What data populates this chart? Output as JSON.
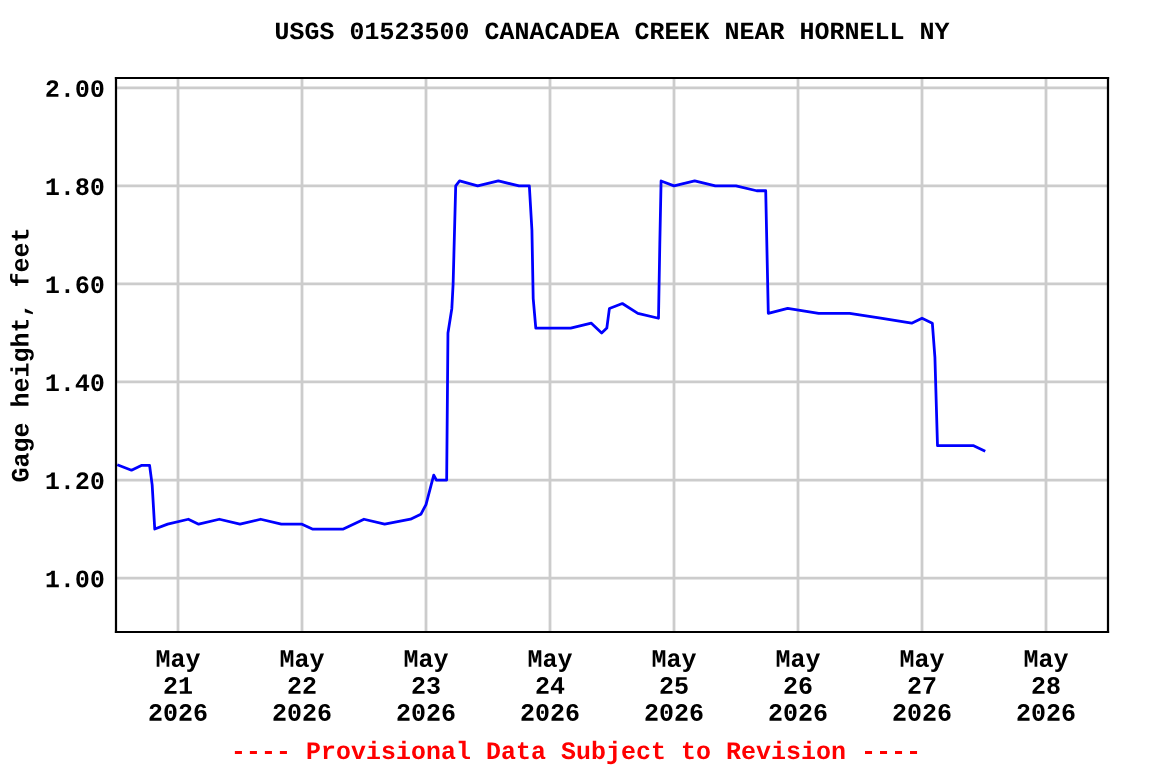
{
  "chart_data": {
    "type": "line",
    "title": "USGS 01523500 CANACADEA CREEK NEAR HORNELL NY",
    "ylabel": "Gage height, feet",
    "annotations": [
      "---- Provisional Data Subject to Revision ----"
    ],
    "x": [
      "2026-05-20T12:30",
      "2026-05-20T15:00",
      "2026-05-20T17:00",
      "2026-05-20T18:30",
      "2026-05-20T19:00",
      "2026-05-20T19:30",
      "2026-05-20T22:00",
      "2026-05-21T02:00",
      "2026-05-21T04:00",
      "2026-05-21T08:00",
      "2026-05-21T12:00",
      "2026-05-21T16:00",
      "2026-05-21T20:00",
      "2026-05-22T00:00",
      "2026-05-22T02:00",
      "2026-05-22T08:00",
      "2026-05-22T12:00",
      "2026-05-22T16:00",
      "2026-05-22T21:00",
      "2026-05-22T23:00",
      "2026-05-23T00:00",
      "2026-05-23T01:00",
      "2026-05-23T01:30",
      "2026-05-23T02:00",
      "2026-05-23T04:00",
      "2026-05-23T04:15",
      "2026-05-23T05:00",
      "2026-05-23T05:15",
      "2026-05-23T05:45",
      "2026-05-23T06:30",
      "2026-05-23T10:00",
      "2026-05-23T14:00",
      "2026-05-23T18:00",
      "2026-05-23T20:00",
      "2026-05-23T20:30",
      "2026-05-23T20:45",
      "2026-05-23T21:15",
      "2026-05-24T00:00",
      "2026-05-24T04:00",
      "2026-05-24T08:00",
      "2026-05-24T10:00",
      "2026-05-24T11:00",
      "2026-05-24T11:30",
      "2026-05-24T14:00",
      "2026-05-24T17:00",
      "2026-05-24T21:00",
      "2026-05-24T21:15",
      "2026-05-24T21:30",
      "2026-05-25T00:00",
      "2026-05-25T04:00",
      "2026-05-25T08:00",
      "2026-05-25T12:00",
      "2026-05-25T16:00",
      "2026-05-25T17:45",
      "2026-05-25T18:15",
      "2026-05-25T22:00",
      "2026-05-26T04:00",
      "2026-05-26T10:00",
      "2026-05-26T16:00",
      "2026-05-26T22:00",
      "2026-05-27T00:00",
      "2026-05-27T02:00",
      "2026-05-27T02:30",
      "2026-05-27T03:00",
      "2026-05-27T06:00",
      "2026-05-27T10:00",
      "2026-05-27T12:00"
    ],
    "series": [
      {
        "color": "#0000ff",
        "values": [
          1.23,
          1.22,
          1.23,
          1.23,
          1.19,
          1.1,
          1.11,
          1.12,
          1.11,
          1.12,
          1.11,
          1.12,
          1.11,
          1.11,
          1.1,
          1.1,
          1.12,
          1.11,
          1.12,
          1.13,
          1.15,
          1.19,
          1.21,
          1.2,
          1.2,
          1.5,
          1.55,
          1.6,
          1.8,
          1.81,
          1.8,
          1.81,
          1.8,
          1.8,
          1.71,
          1.57,
          1.51,
          1.51,
          1.51,
          1.52,
          1.5,
          1.51,
          1.55,
          1.56,
          1.54,
          1.53,
          1.68,
          1.81,
          1.8,
          1.81,
          1.8,
          1.8,
          1.79,
          1.79,
          1.54,
          1.55,
          1.54,
          1.54,
          1.53,
          1.52,
          1.53,
          1.52,
          1.45,
          1.27,
          1.27,
          1.27,
          1.26
        ]
      }
    ],
    "xlim": [
      "2026-05-20T12:00",
      "2026-05-28T12:00"
    ],
    "xticks": [
      {
        "value": "2026-05-21",
        "label": "May\n21\n2026"
      },
      {
        "value": "2026-05-22",
        "label": "May\n22\n2026"
      },
      {
        "value": "2026-05-23",
        "label": "May\n23\n2026"
      },
      {
        "value": "2026-05-24",
        "label": "May\n24\n2026"
      },
      {
        "value": "2026-05-25",
        "label": "May\n25\n2026"
      },
      {
        "value": "2026-05-26",
        "label": "May\n26\n2026"
      },
      {
        "value": "2026-05-27",
        "label": "May\n27\n2026"
      },
      {
        "value": "2026-05-28",
        "label": "May\n28\n2026"
      }
    ],
    "ylim": [
      0.89,
      2.02
    ],
    "yticks": [
      {
        "value": 1.0,
        "label": "1.00"
      },
      {
        "value": 1.2,
        "label": "1.20"
      },
      {
        "value": 1.4,
        "label": "1.40"
      },
      {
        "value": 1.6,
        "label": "1.60"
      },
      {
        "value": 1.8,
        "label": "1.80"
      },
      {
        "value": 2.0,
        "label": "2.00"
      }
    ],
    "grid": true,
    "legend": false,
    "marker": "none",
    "line_style": "solid"
  }
}
